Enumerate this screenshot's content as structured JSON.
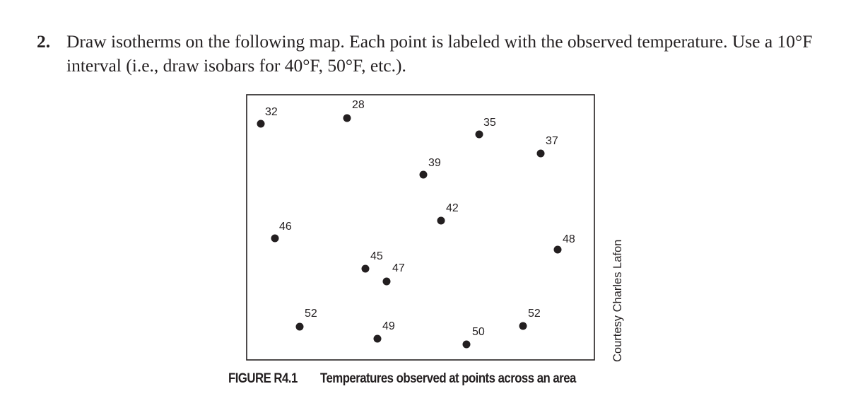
{
  "question": {
    "number": "2.",
    "text": "Draw isotherms on the following map. Each point is labeled with the observed temperature. Use a 10°F interval (i.e., draw isobars for 40°F, 50°F, etc.)."
  },
  "figure": {
    "label": "FIGURE R4.1",
    "caption": "Temperatures observed at points across an area",
    "credit": "Courtesy Charles Lafon"
  },
  "observations": [
    {
      "value": "32"
    },
    {
      "value": "28"
    },
    {
      "value": "35"
    },
    {
      "value": "37"
    },
    {
      "value": "39"
    },
    {
      "value": "42"
    },
    {
      "value": "46"
    },
    {
      "value": "48"
    },
    {
      "value": "45"
    },
    {
      "value": "47"
    },
    {
      "value": "52"
    },
    {
      "value": "49"
    },
    {
      "value": "50"
    },
    {
      "value": "52"
    }
  ],
  "colors": {
    "ink": "#231f20",
    "background": "#ffffff"
  }
}
